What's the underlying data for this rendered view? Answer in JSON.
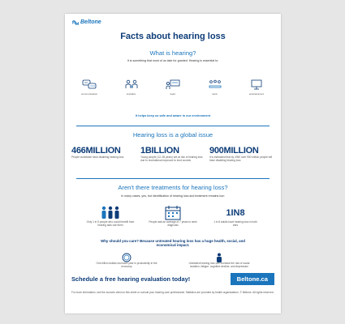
{
  "brand": {
    "name": "Beltone",
    "color": "#1b75bc"
  },
  "title": "Facts about hearing loss",
  "what": {
    "heading": "What is hearing?",
    "subtitle": "It is something that most of us take for granted. Hearing is essential to:",
    "items": [
      {
        "label": "communication",
        "icon": "speech-bubbles-icon"
      },
      {
        "label": "socialize",
        "icon": "people-talking-icon"
      },
      {
        "label": "learn",
        "icon": "classroom-icon"
      },
      {
        "label": "work",
        "icon": "meeting-icon"
      },
      {
        "label": "entertainment",
        "icon": "monitor-icon"
      }
    ],
    "safe_note": "It helps keep us safe and aware in our environment"
  },
  "global": {
    "heading": "Hearing loss is a global issue",
    "stats": [
      {
        "number": "466MILLION",
        "desc": "People worldwide have disabling hearing loss"
      },
      {
        "number": "1BILLION",
        "desc": "Young people (12–35 years) are at risk of hearing loss due to recreational exposure to loud sounds"
      },
      {
        "number": "900MILLION",
        "desc": "It is estimated that by 2050 over 900 million people will have disabling hearing loss"
      }
    ]
  },
  "treatments": {
    "heading": "Aren't there treatments for hearing loss?",
    "subtitle": "In many cases, yes, but identification of hearing loss and treatment remains low:",
    "items": [
      {
        "desc": "Only 1 in 5 people who could benefit from hearing aids use them",
        "icon": "people-group-icon"
      },
      {
        "desc": "People wait an average of 7 years to seek diagnosis",
        "icon": "calendar-icon"
      },
      {
        "desc": "1 in 8 adults have hearing loss in both ears",
        "icon": "one-in-eight-icon",
        "big": "1IN8"
      }
    ]
  },
  "why": "Why should you care? Because untreated hearing loss has a huge health, social, and economical impact.",
  "impact": [
    {
      "desc": "One billion dollars lost each year in productivity in the economy",
      "icon": "coins-icon"
    },
    {
      "desc": "Untreated hearing loss can increase the risk of social isolation, fatigue, cognitive decline, and depression",
      "icon": "person-icon"
    }
  ],
  "cta": {
    "text": "Schedule a free hearing evaluation today!",
    "button": "Beltone.ca"
  },
  "footer": "For more information, see the sources cited on this sheet or consult your hearing care professional. Statistics are provided by health organizations. © Beltone. All rights reserved."
}
